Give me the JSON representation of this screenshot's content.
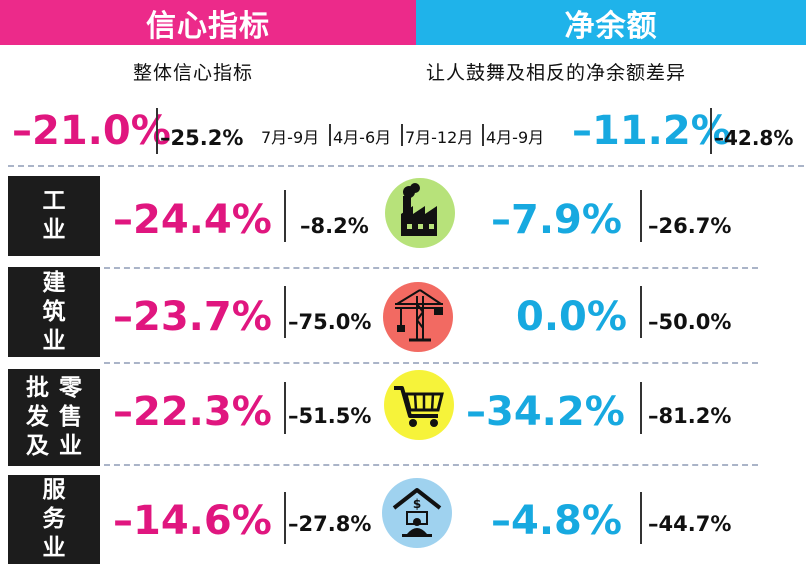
{
  "header": {
    "left_title": "信心指标",
    "right_title": "净余额"
  },
  "subtitles": {
    "left": "整体信心指标",
    "right": "让人鼓舞及相反的净余额差异"
  },
  "periods": [
    "7月-9月",
    "4月-6月",
    "7月-12月",
    "4月-9月"
  ],
  "summary": {
    "confidence_current": "–21.0%",
    "confidence_previous": "–25.2%",
    "net_current": "–11.2%",
    "net_previous": "–42.8%"
  },
  "sectors": [
    {
      "label_lines": [
        "工",
        "业"
      ],
      "confidence_current": "–24.4%",
      "confidence_previous": "–8.2%",
      "net_current": "–7.9%",
      "net_previous": "–26.7%",
      "icon": "factory-icon",
      "icon_color": "#b7e27a"
    },
    {
      "label_lines": [
        "建",
        "筑",
        "业"
      ],
      "confidence_current": "–23.7%",
      "confidence_previous": "–75.0%",
      "net_current": "0.0%",
      "net_previous": "–50.0%",
      "icon": "crane-icon",
      "icon_color": "#f26a62"
    },
    {
      "label_cols": [
        [
          "批",
          "发",
          "及"
        ],
        [
          "零",
          "售",
          "业"
        ]
      ],
      "confidence_current": "–22.3%",
      "confidence_previous": "–51.5%",
      "net_current": "–34.2%",
      "net_previous": "–81.2%",
      "icon": "shopping-cart-icon",
      "icon_color": "#f6f33a"
    },
    {
      "label_lines": [
        "服",
        "务",
        "业"
      ],
      "confidence_current": "–14.6%",
      "confidence_previous": "–27.8%",
      "net_current": "–4.8%",
      "net_previous": "–44.7%",
      "icon": "service-icon",
      "icon_color": "#9fd2ef"
    }
  ],
  "colors": {
    "pink": "#e0167f",
    "blue": "#17a9e0",
    "header_pink": "#ec2a8a",
    "header_blue": "#1fb3ea"
  }
}
